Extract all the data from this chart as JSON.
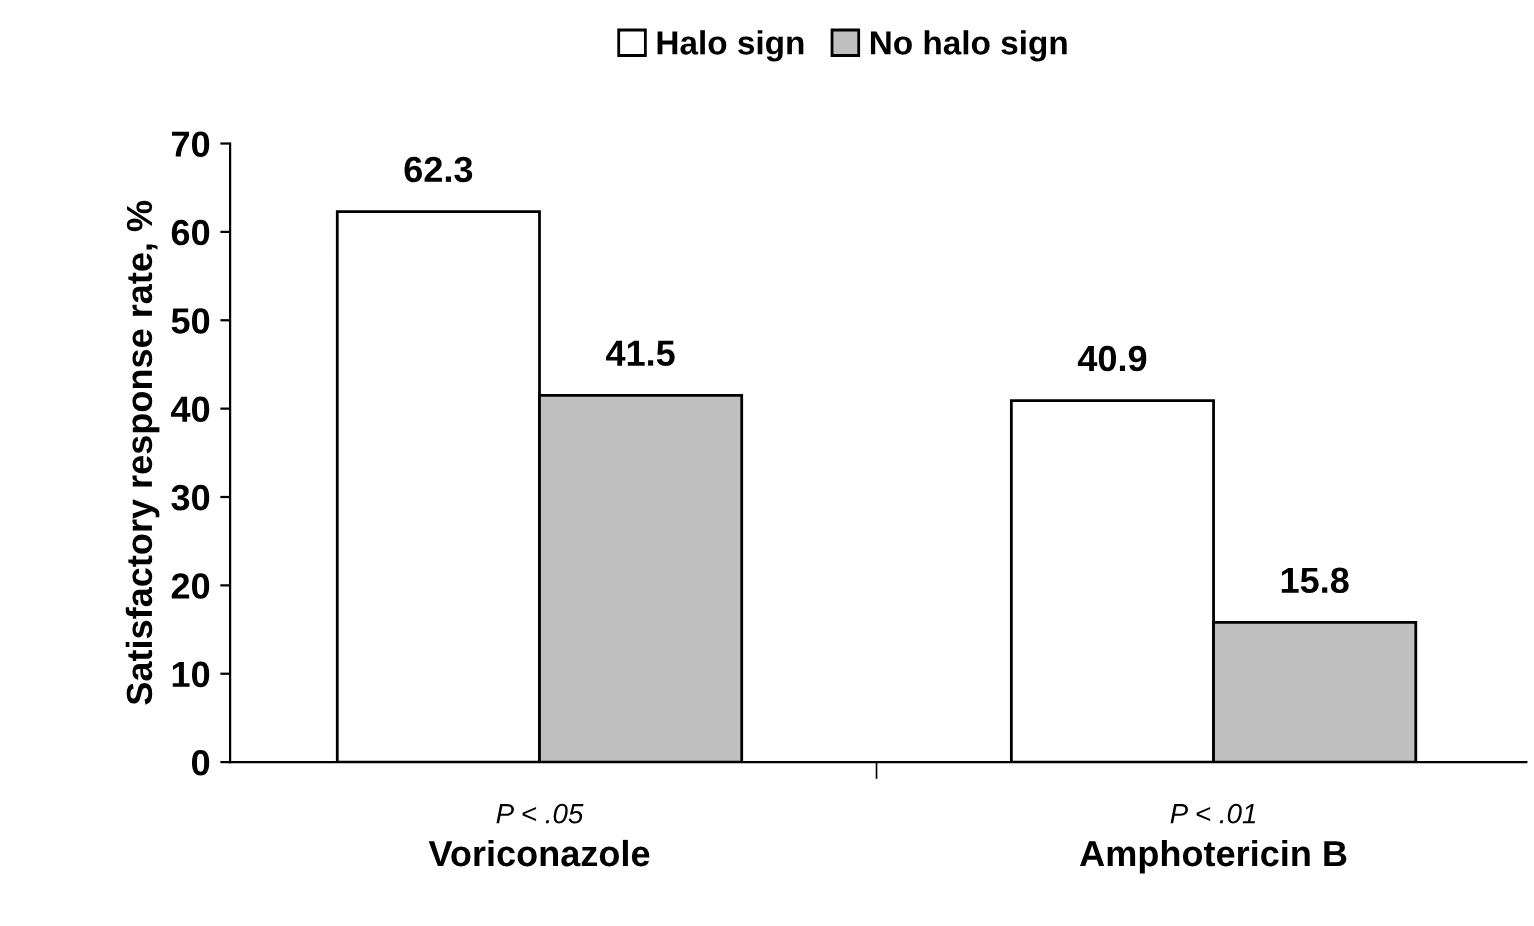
{
  "chart_data": {
    "type": "bar",
    "ylabel": "Satisfactory response rate, %",
    "categories": [
      "Voriconazole",
      "Amphotericin B"
    ],
    "series": [
      {
        "name": "Halo sign",
        "color": "#ffffff",
        "values": [
          62.3,
          40.9
        ]
      },
      {
        "name": "No halo sign",
        "color": "#c0c0c0",
        "values": [
          41.5,
          15.8
        ]
      }
    ],
    "ylim": [
      0,
      70
    ],
    "yticks": [
      0,
      10,
      20,
      30,
      40,
      50,
      60,
      70
    ],
    "data_labels": true,
    "legend": "top",
    "grid": false,
    "annotations": [
      "P < .05",
      "P < .01"
    ]
  }
}
